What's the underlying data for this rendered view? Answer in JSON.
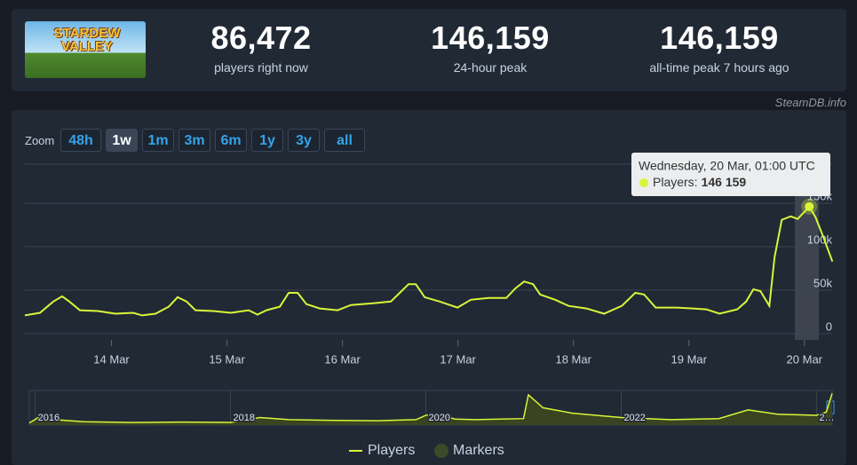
{
  "header": {
    "logo": [
      "STARDEW",
      "VALLEY"
    ],
    "stats": [
      {
        "value": "86,472",
        "label": "players right now"
      },
      {
        "value": "146,159",
        "label": "24-hour peak"
      },
      {
        "value": "146,159",
        "label": "all-time peak 7 hours ago"
      }
    ],
    "source": "SteamDB.info"
  },
  "zoom": {
    "label": "Zoom",
    "buttons": [
      "48h",
      "1w",
      "1m",
      "3m",
      "6m",
      "1y",
      "3y",
      "all"
    ],
    "active": "1w"
  },
  "chart_data": [
    {
      "type": "line",
      "series": [
        {
          "name": "Players",
          "color": "#d8f53a",
          "x": [
            13.25,
            13.381,
            13.496,
            13.573,
            13.635,
            13.727,
            13.881,
            14.035,
            14.188,
            14.265,
            14.381,
            14.496,
            14.573,
            14.65,
            14.727,
            14.881,
            15.035,
            15.188,
            15.265,
            15.342,
            15.458,
            15.535,
            15.612,
            15.688,
            15.804,
            15.958,
            16.073,
            16.265,
            16.419,
            16.496,
            16.573,
            16.635,
            16.712,
            16.842,
            16.996,
            17.112,
            17.265,
            17.419,
            17.496,
            17.573,
            17.65,
            17.712,
            17.842,
            17.958,
            18.112,
            18.265,
            18.419,
            18.535,
            18.612,
            18.712,
            18.881,
            19.035,
            19.15,
            19.265,
            19.419,
            19.496,
            19.558,
            19.619,
            19.696,
            19.742,
            19.804,
            19.881,
            19.942,
            20.042,
            20.096,
            20.173,
            20.242
          ],
          "values": [
            21000,
            24000,
            37000,
            43000,
            37000,
            27000,
            26000,
            23000,
            24000,
            21000,
            23000,
            31000,
            42000,
            37000,
            27000,
            26000,
            24000,
            27000,
            22000,
            27000,
            31000,
            47000,
            47000,
            34000,
            29000,
            27000,
            33000,
            35000,
            37000,
            47000,
            57000,
            57000,
            42000,
            37000,
            30000,
            39000,
            41000,
            41000,
            52000,
            60000,
            57000,
            45000,
            39000,
            32000,
            29000,
            23000,
            32000,
            47000,
            45000,
            30000,
            30000,
            29000,
            28000,
            23000,
            28000,
            37000,
            51000,
            49000,
            32000,
            88000,
            131000,
            135000,
            132000,
            146159,
            134000,
            108000,
            83000
          ]
        }
      ],
      "xlim": [
        13.25,
        20.24
      ],
      "xticks": [
        {
          "value": 14,
          "label": "14 Mar"
        },
        {
          "value": 15,
          "label": "15 Mar"
        },
        {
          "value": 16,
          "label": "16 Mar"
        },
        {
          "value": 17,
          "label": "17 Mar"
        },
        {
          "value": 18,
          "label": "18 Mar"
        },
        {
          "value": 19,
          "label": "19 Mar"
        },
        {
          "value": 20,
          "label": "20 Mar"
        }
      ],
      "ylim": [
        0,
        195000
      ],
      "yticks": [
        0,
        {
          "value": 50000,
          "label": "50k"
        },
        {
          "value": 100000,
          "label": "100k"
        },
        {
          "value": 150000,
          "label": "150k"
        }
      ],
      "grid": true,
      "tooltip": {
        "title": "Wednesday, 20 Mar, 01:00 UTC",
        "series_label": "Players:",
        "value_label": "146 159"
      },
      "legend": [
        "Players",
        "Markers"
      ],
      "marker_color": "#3d4a2a"
    },
    {
      "type": "area",
      "color": "#d8f53a",
      "fill": "#3a4420",
      "x": [
        2015.94,
        2016.05,
        2016.2,
        2016.5,
        2017,
        2017.5,
        2018,
        2018.3,
        2018.6,
        2019,
        2019.5,
        2019.9,
        2020,
        2020.1,
        2020.3,
        2020.5,
        2021,
        2021.05,
        2021.2,
        2021.5,
        2022,
        2022.5,
        2023,
        2023.3,
        2023.6,
        2024,
        2024.1,
        2024.16
      ],
      "values": [
        10000,
        40000,
        25000,
        15000,
        12000,
        14000,
        12000,
        35000,
        25000,
        22000,
        20000,
        25000,
        45000,
        50000,
        28000,
        25000,
        30000,
        140000,
        80000,
        55000,
        35000,
        25000,
        30000,
        70000,
        50000,
        45000,
        60000,
        146000
      ],
      "xlim": [
        2015.94,
        2024.16
      ],
      "ylim": [
        0,
        160000
      ],
      "xticks": [
        2016,
        2018,
        2020,
        2022,
        {
          "value": 2024,
          "label": "2…"
        }
      ]
    }
  ]
}
